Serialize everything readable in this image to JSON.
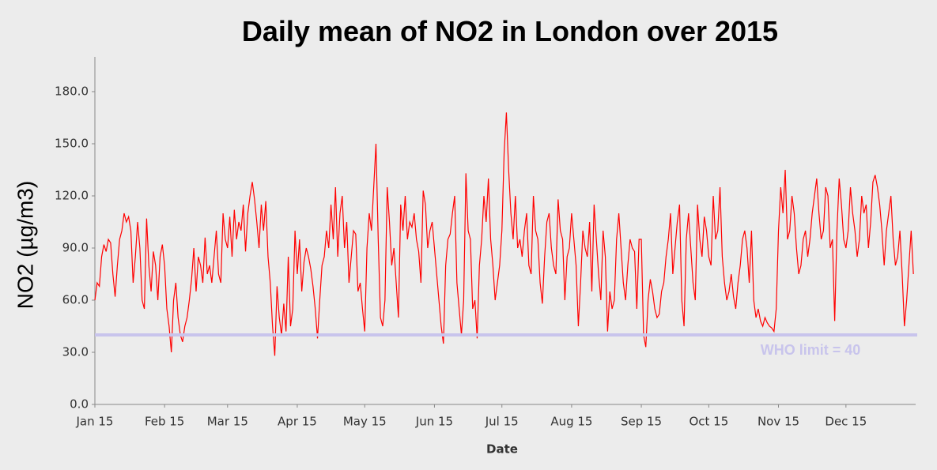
{
  "chart_data": {
    "type": "line",
    "title": "Daily mean of NO2 in London over 2015",
    "x_label": "Date",
    "y_label": "NO2 (µg/m3)",
    "color": "#ff0000",
    "xlim": [
      0,
      365
    ],
    "xticks": [
      {
        "value": 0,
        "label": "Jan 15"
      },
      {
        "value": 31,
        "label": "Feb 15"
      },
      {
        "value": 59,
        "label": "Mar 15"
      },
      {
        "value": 90,
        "label": "Apr 15"
      },
      {
        "value": 120,
        "label": "May 15"
      },
      {
        "value": 151,
        "label": "Jun 15"
      },
      {
        "value": 181,
        "label": "Jul 15"
      },
      {
        "value": 212,
        "label": "Aug 15"
      },
      {
        "value": 243,
        "label": "Sep 15"
      },
      {
        "value": 273,
        "label": "Oct 15"
      },
      {
        "value": 304,
        "label": "Nov 15"
      },
      {
        "value": 334,
        "label": "Dec 15"
      }
    ],
    "ylim": [
      0,
      200
    ],
    "yticks": [
      {
        "value": 0,
        "label": "0.0"
      },
      {
        "value": 30,
        "label": "30.0"
      },
      {
        "value": 60,
        "label": "60.0"
      },
      {
        "value": 90,
        "label": "90.0"
      },
      {
        "value": 120,
        "label": "120.0"
      },
      {
        "value": 150,
        "label": "150.0"
      },
      {
        "value": 180,
        "label": "180.0"
      }
    ],
    "reference_lines": [
      {
        "value": 40,
        "label": "WHO limit = 40",
        "color": "#c8c4ec"
      }
    ],
    "values": [
      60,
      70,
      68,
      85,
      92,
      88,
      95,
      93,
      75,
      62,
      80,
      95,
      100,
      110,
      105,
      108,
      100,
      70,
      85,
      105,
      90,
      60,
      55,
      107,
      80,
      65,
      88,
      80,
      60,
      85,
      92,
      80,
      55,
      45,
      30,
      60,
      70,
      50,
      40,
      36,
      45,
      50,
      60,
      72,
      90,
      65,
      85,
      80,
      70,
      96,
      75,
      80,
      70,
      85,
      100,
      75,
      70,
      110,
      95,
      90,
      108,
      85,
      112,
      95,
      105,
      100,
      115,
      88,
      110,
      120,
      128,
      118,
      105,
      90,
      115,
      100,
      117,
      85,
      70,
      45,
      28,
      68,
      50,
      40,
      58,
      42,
      85,
      45,
      55,
      100,
      75,
      95,
      65,
      82,
      90,
      85,
      78,
      68,
      55,
      38,
      60,
      80,
      85,
      100,
      90,
      115,
      95,
      125,
      85,
      110,
      120,
      90,
      105,
      70,
      85,
      100,
      98,
      65,
      70,
      55,
      42,
      90,
      110,
      100,
      125,
      150,
      95,
      50,
      45,
      60,
      125,
      105,
      80,
      90,
      70,
      50,
      115,
      100,
      120,
      95,
      105,
      102,
      110,
      95,
      88,
      70,
      123,
      115,
      90,
      100,
      105,
      90,
      75,
      60,
      45,
      35,
      80,
      95,
      98,
      110,
      120,
      70,
      55,
      40,
      60,
      133,
      100,
      95,
      55,
      60,
      38,
      80,
      95,
      120,
      105,
      130,
      95,
      80,
      60,
      70,
      80,
      100,
      145,
      168,
      135,
      110,
      95,
      120,
      90,
      95,
      85,
      100,
      110,
      80,
      75,
      120,
      100,
      95,
      70,
      58,
      85,
      105,
      110,
      90,
      80,
      75,
      118,
      100,
      95,
      60,
      85,
      90,
      110,
      95,
      80,
      45,
      70,
      100,
      90,
      85,
      105,
      65,
      115,
      95,
      75,
      60,
      100,
      85,
      42,
      65,
      55,
      60,
      95,
      110,
      90,
      70,
      60,
      80,
      95,
      90,
      88,
      55,
      95,
      95,
      40,
      33,
      60,
      72,
      65,
      55,
      50,
      52,
      65,
      70,
      85,
      95,
      110,
      75,
      90,
      105,
      115,
      60,
      45,
      95,
      110,
      90,
      70,
      60,
      115,
      95,
      85,
      108,
      100,
      85,
      80,
      120,
      95,
      100,
      125,
      85,
      70,
      60,
      65,
      75,
      62,
      55,
      70,
      80,
      95,
      100,
      90,
      70,
      100,
      60,
      50,
      55,
      48,
      45,
      50,
      47,
      45,
      44,
      42,
      55,
      100,
      125,
      110,
      135,
      95,
      100,
      120,
      110,
      90,
      75,
      80,
      95,
      100,
      85,
      95,
      110,
      120,
      130,
      110,
      95,
      100,
      125,
      120,
      90,
      95,
      48,
      100,
      130,
      115,
      95,
      90,
      100,
      125,
      110,
      100,
      85,
      95,
      120,
      110,
      115,
      90,
      105,
      128,
      132,
      125,
      115,
      100,
      80,
      100,
      110,
      120,
      95,
      80,
      85,
      100,
      75,
      45,
      60,
      80,
      100,
      75
    ]
  }
}
